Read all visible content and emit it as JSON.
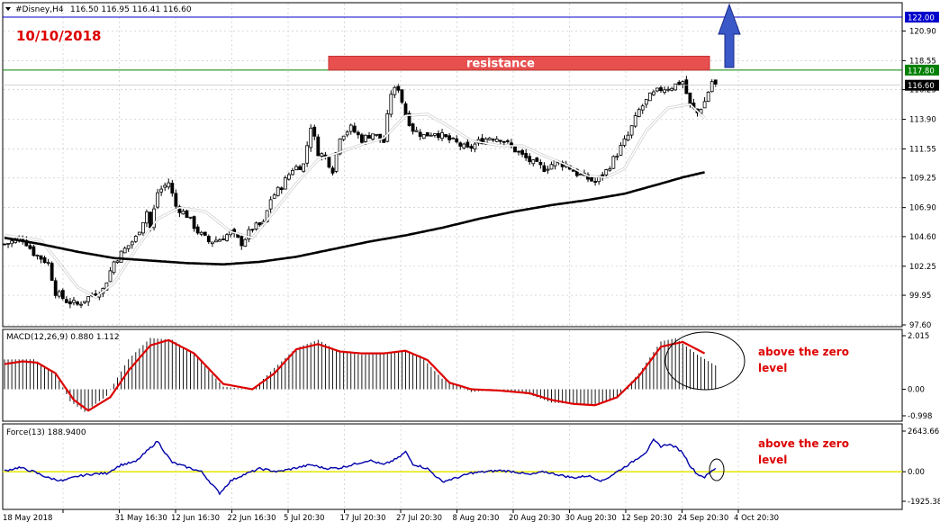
{
  "header": {
    "symbol_text": "#Disney,H4",
    "ohlc_text": "116.50 116.95 116.41 116.60"
  },
  "annotations": {
    "date": "10/10/2018",
    "resistance_label": "resistance",
    "macd_note_line1": "above the zero",
    "macd_note_line2": "level",
    "force_note_line1": "above the zero",
    "force_note_line2": "level"
  },
  "colors": {
    "background": "#ffffff",
    "grid": "#c8c8c8",
    "candle": "#000000",
    "fast_ma": "#ffffff",
    "slow_ma": "#000000",
    "resistance_fill": "#e85050",
    "resistance_line": "#008000",
    "target_line": "#0000cc",
    "arrow_fill": "#3a58c8",
    "macd_hist": "#000000",
    "macd_signal": "#dd0000",
    "force_line": "#0000aa",
    "force_zero": "#e6e600",
    "annotation_red": "#dd0000",
    "price_tag_blue": "#0000cc",
    "price_tag_green": "#008000"
  },
  "chart_data": [
    {
      "type": "candlestick",
      "ylim": [
        97.6,
        123.0
      ],
      "y_ticks": [
        "120.90",
        "118.55",
        "116.25",
        "113.90",
        "111.55",
        "109.25",
        "106.90",
        "104.60",
        "102.25",
        "99.95",
        "97.60"
      ],
      "x_ticks": [
        "18 May 2018",
        "31 May 16:30",
        "12 Jun 16:30",
        "22 Jun 16:30",
        "5 Jul 20:30",
        "17 Jul 20:30",
        "27 Jul 20:30",
        "8 Aug 20:30",
        "20 Aug 20:30",
        "30 Aug 20:30",
        "12 Sep 20:30",
        "24 Sep 20:30",
        "4 Oct 20:30"
      ],
      "bar_count": 196,
      "close_path": [
        [
          0,
          104.0
        ],
        [
          5,
          104.5
        ],
        [
          8,
          103.3
        ],
        [
          12,
          102.5
        ],
        [
          14,
          100.2
        ],
        [
          17,
          99.5
        ],
        [
          20,
          99.2
        ],
        [
          24,
          100.0
        ],
        [
          27,
          100.4
        ],
        [
          30,
          102.6
        ],
        [
          33,
          103.6
        ],
        [
          36,
          104.5
        ],
        [
          39,
          106.6
        ],
        [
          40,
          105.3
        ],
        [
          42,
          108.1
        ],
        [
          45,
          108.9
        ],
        [
          47,
          107.0
        ],
        [
          50,
          106.3
        ],
        [
          53,
          105.0
        ],
        [
          56,
          104.2
        ],
        [
          59,
          104.4
        ],
        [
          62,
          104.9
        ],
        [
          65,
          104.1
        ],
        [
          68,
          105.3
        ],
        [
          71,
          105.6
        ],
        [
          73,
          107.6
        ],
        [
          76,
          108.6
        ],
        [
          79,
          110.0
        ],
        [
          82,
          110.3
        ],
        [
          84,
          113.4
        ],
        [
          86,
          111.3
        ],
        [
          88,
          110.9
        ],
        [
          90,
          109.9
        ],
        [
          92,
          112.6
        ],
        [
          95,
          113.2
        ],
        [
          98,
          112.3
        ],
        [
          101,
          112.8
        ],
        [
          104,
          112.1
        ],
        [
          106,
          116.0
        ],
        [
          108,
          116.4
        ],
        [
          110,
          114.3
        ],
        [
          112,
          113.1
        ],
        [
          115,
          112.6
        ],
        [
          118,
          112.9
        ],
        [
          121,
          112.4
        ],
        [
          124,
          112.0
        ],
        [
          127,
          111.5
        ],
        [
          130,
          112.1
        ],
        [
          133,
          112.5
        ],
        [
          136,
          112.4
        ],
        [
          139,
          111.7
        ],
        [
          142,
          111.0
        ],
        [
          145,
          110.4
        ],
        [
          148,
          110.0
        ],
        [
          151,
          110.5
        ],
        [
          154,
          110.3
        ],
        [
          157,
          109.6
        ],
        [
          160,
          109.2
        ],
        [
          162,
          108.9
        ],
        [
          165,
          109.8
        ],
        [
          168,
          111.2
        ],
        [
          171,
          112.6
        ],
        [
          174,
          114.6
        ],
        [
          177,
          115.7
        ],
        [
          180,
          116.3
        ],
        [
          183,
          116.5
        ],
        [
          186,
          116.9
        ],
        [
          188,
          115.0
        ],
        [
          190,
          114.4
        ],
        [
          192,
          115.3
        ],
        [
          194,
          116.9
        ],
        [
          195,
          116.6
        ]
      ],
      "series": [
        {
          "name": "fast MA",
          "path": [
            [
              0,
              104.7
            ],
            [
              10,
              104.3
            ],
            [
              15,
              102.5
            ],
            [
              20,
              100.6
            ],
            [
              25,
              99.8
            ],
            [
              30,
              100.9
            ],
            [
              36,
              103.6
            ],
            [
              42,
              106.0
            ],
            [
              48,
              106.9
            ],
            [
              55,
              106.6
            ],
            [
              62,
              105.0
            ],
            [
              68,
              104.5
            ],
            [
              74,
              106.6
            ],
            [
              80,
              108.8
            ],
            [
              86,
              110.7
            ],
            [
              92,
              111.3
            ],
            [
              98,
              111.9
            ],
            [
              104,
              112.4
            ],
            [
              110,
              114.2
            ],
            [
              116,
              114.3
            ],
            [
              122,
              113.3
            ],
            [
              128,
              112.2
            ],
            [
              136,
              111.8
            ],
            [
              142,
              111.8
            ],
            [
              148,
              111.0
            ],
            [
              154,
              110.3
            ],
            [
              160,
              109.4
            ],
            [
              165,
              109.3
            ],
            [
              170,
              110.0
            ],
            [
              176,
              113.0
            ],
            [
              182,
              114.8
            ],
            [
              188,
              115.1
            ],
            [
              192,
              114.0
            ]
          ]
        },
        {
          "name": "slow MA",
          "path": [
            [
              0,
              104.5
            ],
            [
              10,
              104.0
            ],
            [
              20,
              103.4
            ],
            [
              30,
              102.9
            ],
            [
              40,
              102.7
            ],
            [
              50,
              102.5
            ],
            [
              60,
              102.4
            ],
            [
              70,
              102.6
            ],
            [
              80,
              103.0
            ],
            [
              90,
              103.6
            ],
            [
              100,
              104.2
            ],
            [
              110,
              104.7
            ],
            [
              120,
              105.3
            ],
            [
              130,
              106.0
            ],
            [
              140,
              106.6
            ],
            [
              150,
              107.1
            ],
            [
              160,
              107.5
            ],
            [
              170,
              108.0
            ],
            [
              180,
              108.8
            ],
            [
              186,
              109.3
            ],
            [
              192,
              109.7
            ]
          ]
        }
      ],
      "horizontal_levels": [
        {
          "value": 122.0,
          "tag": "122.00"
        },
        {
          "value": 117.8,
          "tag": "117.80"
        }
      ],
      "current_price": {
        "value": 116.6,
        "tag": "116.60"
      },
      "resistance_zone": [
        117.8,
        118.9
      ]
    },
    {
      "type": "bar",
      "header_text": "MACD(12,26,9) 0.880 1.112",
      "ylim": [
        -0.998,
        2.015
      ],
      "y_ticks": [
        "2.015",
        "0.00",
        "-0.998"
      ],
      "histogram_path": [
        [
          0,
          1.12
        ],
        [
          8,
          1.13
        ],
        [
          14,
          0.6
        ],
        [
          18,
          -0.45
        ],
        [
          22,
          -0.85
        ],
        [
          28,
          -0.25
        ],
        [
          34,
          1.13
        ],
        [
          40,
          1.93
        ],
        [
          46,
          1.86
        ],
        [
          52,
          1.33
        ],
        [
          60,
          0.1
        ],
        [
          68,
          -0.02
        ],
        [
          74,
          0.8
        ],
        [
          80,
          1.55
        ],
        [
          86,
          1.86
        ],
        [
          92,
          1.4
        ],
        [
          98,
          1.3
        ],
        [
          106,
          1.36
        ],
        [
          110,
          1.44
        ],
        [
          114,
          1.27
        ],
        [
          120,
          0.4
        ],
        [
          128,
          -0.1
        ],
        [
          136,
          0.0
        ],
        [
          144,
          -0.2
        ],
        [
          150,
          -0.5
        ],
        [
          156,
          -0.55
        ],
        [
          162,
          -0.6
        ],
        [
          168,
          -0.3
        ],
        [
          174,
          0.6
        ],
        [
          180,
          1.8
        ],
        [
          184,
          1.92
        ],
        [
          190,
          1.3
        ],
        [
          195,
          0.9
        ]
      ],
      "series": [
        {
          "name": "signal",
          "path": [
            [
              0,
              0.95
            ],
            [
              5,
              1.05
            ],
            [
              9,
              1.0
            ],
            [
              14,
              0.6
            ],
            [
              19,
              -0.4
            ],
            [
              23,
              -0.8
            ],
            [
              29,
              -0.3
            ],
            [
              34,
              0.7
            ],
            [
              40,
              1.65
            ],
            [
              45,
              1.85
            ],
            [
              52,
              1.35
            ],
            [
              60,
              0.2
            ],
            [
              68,
              0.0
            ],
            [
              74,
              0.6
            ],
            [
              80,
              1.5
            ],
            [
              86,
              1.7
            ],
            [
              92,
              1.42
            ],
            [
              98,
              1.35
            ],
            [
              104,
              1.35
            ],
            [
              110,
              1.45
            ],
            [
              116,
              1.1
            ],
            [
              122,
              0.25
            ],
            [
              128,
              0.0
            ],
            [
              136,
              -0.05
            ],
            [
              144,
              -0.15
            ],
            [
              150,
              -0.4
            ],
            [
              156,
              -0.55
            ],
            [
              162,
              -0.6
            ],
            [
              168,
              -0.3
            ],
            [
              174,
              0.5
            ],
            [
              180,
              1.6
            ],
            [
              186,
              1.78
            ],
            [
              192,
              1.35
            ]
          ]
        }
      ]
    },
    {
      "type": "line",
      "header_text": "Force(13) 188.9400",
      "ylim": [
        -1925.38,
        2643.661
      ],
      "y_ticks": [
        "2643.661",
        "0.00",
        "-1925.38"
      ],
      "series": [
        {
          "name": "force",
          "path": [
            [
              0,
              50
            ],
            [
              4,
              280
            ],
            [
              8,
              0
            ],
            [
              12,
              -400
            ],
            [
              16,
              -600
            ],
            [
              20,
              -300
            ],
            [
              24,
              -150
            ],
            [
              28,
              -100
            ],
            [
              32,
              450
            ],
            [
              36,
              650
            ],
            [
              40,
              1550
            ],
            [
              42,
              2000
            ],
            [
              44,
              1250
            ],
            [
              46,
              600
            ],
            [
              50,
              300
            ],
            [
              54,
              0
            ],
            [
              57,
              -850
            ],
            [
              59,
              -1400
            ],
            [
              62,
              -600
            ],
            [
              65,
              -250
            ],
            [
              70,
              200
            ],
            [
              75,
              0
            ],
            [
              80,
              250
            ],
            [
              84,
              450
            ],
            [
              88,
              220
            ],
            [
              92,
              250
            ],
            [
              96,
              500
            ],
            [
              100,
              750
            ],
            [
              104,
              450
            ],
            [
              108,
              900
            ],
            [
              110,
              1300
            ],
            [
              112,
              500
            ],
            [
              116,
              200
            ],
            [
              120,
              -650
            ],
            [
              124,
              -400
            ],
            [
              128,
              -80
            ],
            [
              132,
              0
            ],
            [
              136,
              80
            ],
            [
              140,
              0
            ],
            [
              144,
              -200
            ],
            [
              148,
              0
            ],
            [
              152,
              -200
            ],
            [
              156,
              -400
            ],
            [
              160,
              -260
            ],
            [
              164,
              -600
            ],
            [
              168,
              0
            ],
            [
              172,
              600
            ],
            [
              176,
              1300
            ],
            [
              178,
              2050
            ],
            [
              180,
              1650
            ],
            [
              182,
              1800
            ],
            [
              184,
              1600
            ],
            [
              186,
              1250
            ],
            [
              188,
              400
            ],
            [
              190,
              -160
            ],
            [
              192,
              -350
            ],
            [
              195,
              240
            ]
          ]
        }
      ]
    }
  ]
}
